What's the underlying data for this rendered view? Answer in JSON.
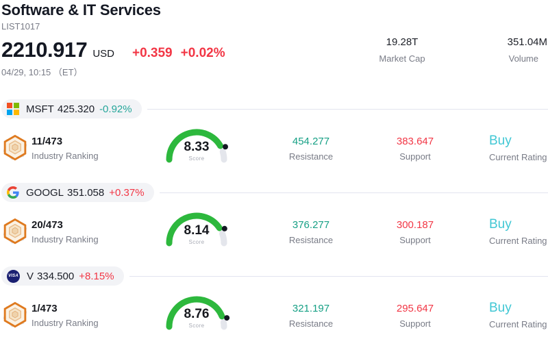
{
  "header": {
    "title": "Software & IT Services",
    "subtitle": "LIST1017",
    "price": "2210.917",
    "currency": "USD",
    "change_abs": "+0.359",
    "change_pct": "+0.02%",
    "timestamp": "04/29, 10:15 （ET）",
    "market_cap": {
      "value": "19.28T",
      "label": "Market Cap"
    },
    "volume": {
      "value": "351.04M",
      "label": "Volume"
    }
  },
  "rows": [
    {
      "ticker": "MSFT",
      "logo": "microsoft-logo",
      "price": "425.320",
      "change": "-0.92%",
      "change_dir": "down",
      "ranking": "11/473",
      "ranking_label": "Industry Ranking",
      "score": "8.33",
      "score_label": "Score",
      "resistance": "454.277",
      "resistance_label": "Resistance",
      "support": "383.647",
      "support_label": "Support",
      "rating": "Buy",
      "rating_label": "Current Rating"
    },
    {
      "ticker": "GOOGL",
      "logo": "google-logo",
      "price": "351.058",
      "change": "+0.37%",
      "change_dir": "up",
      "ranking": "20/473",
      "ranking_label": "Industry Ranking",
      "score": "8.14",
      "score_label": "Score",
      "resistance": "376.277",
      "resistance_label": "Resistance",
      "support": "300.187",
      "support_label": "Support",
      "rating": "Buy",
      "rating_label": "Current Rating"
    },
    {
      "ticker": "V",
      "logo": "visa-logo",
      "logo_text": "VISA",
      "price": "334.500",
      "change": "+8.15%",
      "change_dir": "up",
      "ranking": "1/473",
      "ranking_label": "Industry Ranking",
      "score": "8.76",
      "score_label": "Score",
      "resistance": "321.197",
      "resistance_label": "Resistance",
      "support": "295.647",
      "support_label": "Support",
      "rating": "Buy",
      "rating_label": "Current Rating"
    }
  ],
  "colors": {
    "positive_red": "#f23645",
    "negative_teal": "#26a69a",
    "resistance_teal": "#16a085",
    "support_red": "#f23645",
    "buy_cyan": "#41c7d4",
    "gauge_green": "#2db83d",
    "gauge_track": "#e4e6ec"
  }
}
